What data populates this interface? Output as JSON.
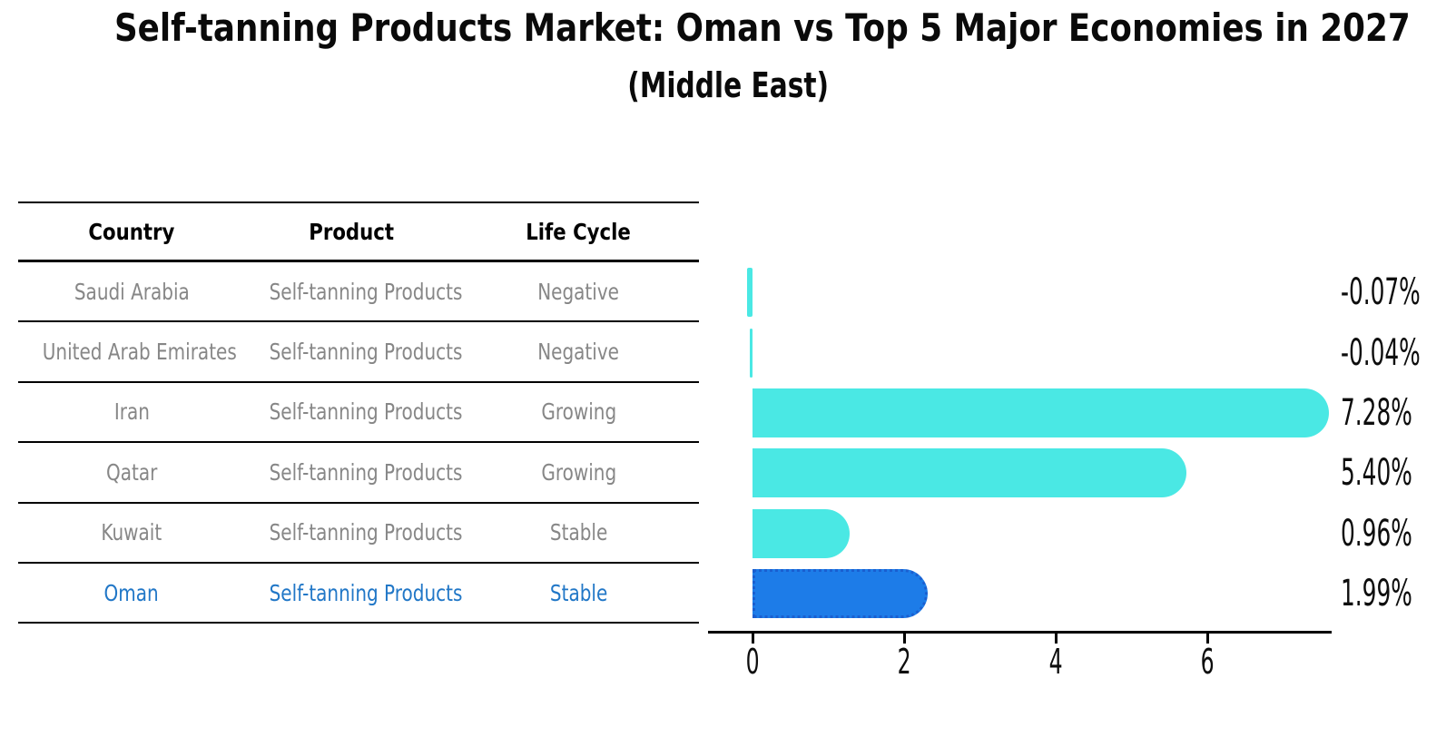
{
  "title": "Self-tanning Products Market: Oman vs Top 5 Major Economies in 2027",
  "subtitle": "(Middle East)",
  "table": {
    "headers": {
      "country": "Country",
      "product": "Product",
      "life_cycle": "Life Cycle"
    },
    "rows": [
      {
        "country": "Saudi Arabia",
        "product": "Self-tanning Products",
        "life_cycle": "Negative",
        "highlighted": false
      },
      {
        "country": "United Arab Emirates",
        "product": "Self-tanning Products",
        "life_cycle": "Negative",
        "highlighted": false
      },
      {
        "country": "Iran",
        "product": "Self-tanning Products",
        "life_cycle": "Growing",
        "highlighted": false
      },
      {
        "country": "Qatar",
        "product": "Self-tanning Products",
        "life_cycle": "Growing",
        "highlighted": false
      },
      {
        "country": "Kuwait",
        "product": "Self-tanning Products",
        "life_cycle": "Stable",
        "highlighted": false
      },
      {
        "country": "Oman",
        "product": "Self-tanning Products",
        "life_cycle": "Stable",
        "highlighted": true
      }
    ]
  },
  "chart_data": {
    "type": "bar",
    "orientation": "horizontal",
    "categories": [
      "Saudi Arabia",
      "United Arab Emirates",
      "Iran",
      "Qatar",
      "Kuwait",
      "Oman"
    ],
    "values": [
      -0.07,
      -0.04,
      7.28,
      5.4,
      0.96,
      1.99
    ],
    "value_labels": [
      "-0.07%",
      "-0.04%",
      "7.28%",
      "5.40%",
      "0.96%",
      "1.99%"
    ],
    "x_ticks": [
      0,
      2,
      4,
      6
    ],
    "xlim": [
      -0.6,
      7.64
    ],
    "grid": false,
    "legend": false,
    "highlight_index": 5,
    "bar_color": "#4AE8E4",
    "highlight_color": "#1D7CE8",
    "highlight_border_color": "#1A5FD0",
    "axis_color": "#000000"
  },
  "colors": {
    "title_text": "#0a0a0a",
    "table_text": "#878787",
    "table_header_text": "#000000",
    "highlight_row_text": "#2177c7",
    "value_label_text": "#0d0d0d"
  }
}
